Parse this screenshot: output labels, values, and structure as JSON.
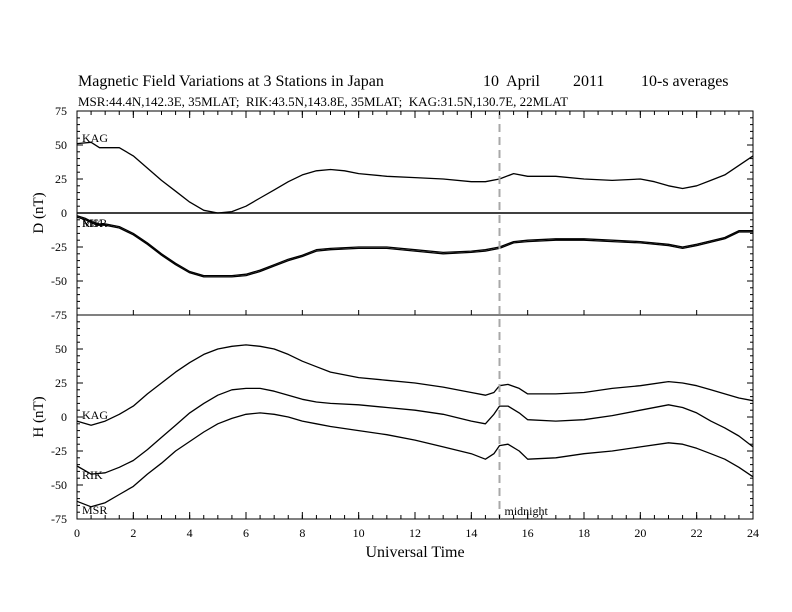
{
  "header": {
    "title": "Magnetic Field Variations at 3 Stations in Japan",
    "date": "10  April",
    "year": "2011",
    "averaging": "10-s averages",
    "stations_line": "MSR:44.4N,142.3E, 35MLAT;  RIK:43.5N,143.8E, 35MLAT;  KAG:31.5N,130.7E, 22MLAT"
  },
  "chart_data": [
    {
      "type": "line",
      "panel": "D",
      "ylabel": "D (nT)",
      "ylim": [
        -75,
        75
      ],
      "yticks": [
        -75,
        -50,
        -25,
        0,
        25,
        50,
        75
      ],
      "xlim": [
        0,
        24
      ],
      "zero_line": true,
      "series": [
        {
          "name": "KAG",
          "x": [
            0,
            0.5,
            0.8,
            1.2,
            1.5,
            2,
            2.5,
            3,
            3.5,
            4,
            4.5,
            5,
            5.5,
            6,
            6.5,
            7,
            7.5,
            8,
            8.5,
            9,
            9.5,
            10,
            11,
            12,
            13,
            14,
            14.5,
            15,
            15.5,
            16,
            17,
            18,
            19,
            20,
            20.5,
            21,
            21.5,
            22,
            22.5,
            23,
            23.5,
            24
          ],
          "y": [
            51,
            52,
            48,
            48,
            48,
            42,
            33,
            24,
            16,
            8,
            2,
            0,
            1,
            5,
            11,
            17,
            23,
            28,
            31,
            32,
            31,
            29,
            27,
            26,
            25,
            23,
            23,
            25,
            29,
            27,
            27,
            25,
            24,
            25,
            23,
            20,
            18,
            20,
            24,
            28,
            35,
            42
          ]
        },
        {
          "name": "RIK",
          "x": [
            0,
            0.3,
            0.7,
            1,
            1.5,
            2,
            2.5,
            3,
            3.5,
            4,
            4.5,
            5,
            5.5,
            6,
            6.5,
            7,
            7.5,
            8,
            8.5,
            9,
            10,
            11,
            12,
            13,
            14,
            14.5,
            15,
            15.5,
            16,
            17,
            18,
            19,
            20,
            21,
            21.5,
            22,
            23,
            23.5,
            24
          ],
          "y": [
            -2,
            -4,
            -8,
            -8,
            -10,
            -15,
            -22,
            -30,
            -37,
            -43,
            -46,
            -46,
            -46,
            -45,
            -42,
            -38,
            -34,
            -31,
            -27,
            -26,
            -25,
            -25,
            -27,
            -29,
            -28,
            -27,
            -25,
            -21,
            -20,
            -19,
            -19,
            -20,
            -21,
            -23,
            -25,
            -23,
            -18,
            -13,
            -13
          ]
        },
        {
          "name": "MSR",
          "x": [
            0,
            0.3,
            0.7,
            1,
            1.5,
            2,
            2.5,
            3,
            3.5,
            4,
            4.5,
            5,
            5.5,
            6,
            6.5,
            7,
            7.5,
            8,
            8.5,
            9,
            10,
            11,
            12,
            13,
            14,
            14.5,
            15,
            15.5,
            16,
            17,
            18,
            19,
            20,
            21,
            21.5,
            22,
            23,
            23.5,
            24
          ],
          "y": [
            -3,
            -5,
            -9,
            -9,
            -11,
            -16,
            -23,
            -31,
            -38,
            -44,
            -47,
            -47,
            -47,
            -46,
            -43,
            -39,
            -35,
            -32,
            -28,
            -27,
            -26,
            -26,
            -28,
            -30,
            -29,
            -28,
            -26,
            -22,
            -21,
            -20,
            -20,
            -21,
            -22,
            -24,
            -26,
            -24,
            -19,
            -14,
            -14
          ]
        }
      ],
      "labels": [
        "KAG",
        "RIK",
        "MSR"
      ]
    },
    {
      "type": "line",
      "panel": "H",
      "ylabel": "H (nT)",
      "ylim": [
        -75,
        75
      ],
      "yticks": [
        -75,
        -50,
        -25,
        0,
        25,
        50
      ],
      "xlim": [
        0,
        24
      ],
      "xticks": [
        0,
        2,
        4,
        6,
        8,
        10,
        12,
        14,
        16,
        18,
        20,
        22,
        24
      ],
      "xlabel": "Universal Time",
      "vertical_marker": {
        "x": 15,
        "label": "midnight",
        "style": "dashed",
        "color": "#a8a8a8"
      },
      "series": [
        {
          "name": "KAG",
          "x": [
            0,
            0.5,
            1,
            1.5,
            2,
            2.5,
            3,
            3.5,
            4,
            4.5,
            5,
            5.5,
            6,
            6.5,
            7,
            7.5,
            8,
            8.5,
            9,
            10,
            11,
            12,
            13,
            14,
            14.5,
            14.8,
            15,
            15.3,
            15.7,
            16,
            17,
            18,
            19,
            20,
            21,
            21.5,
            22,
            22.5,
            23,
            23.5,
            24
          ],
          "y": [
            -3,
            -6,
            -3,
            2,
            8,
            17,
            25,
            33,
            40,
            46,
            50,
            52,
            53,
            52,
            50,
            46,
            41,
            37,
            33,
            29,
            27,
            25,
            22,
            18,
            16,
            18,
            23,
            24,
            21,
            17,
            17,
            18,
            21,
            23,
            26,
            25,
            23,
            20,
            17,
            14,
            12
          ]
        },
        {
          "name": "RIK",
          "x": [
            0,
            0.5,
            1,
            1.5,
            2,
            2.5,
            3,
            3.5,
            4,
            4.5,
            5,
            5.5,
            6,
            6.5,
            7,
            7.5,
            8,
            8.5,
            9,
            10,
            11,
            12,
            13,
            14,
            14.5,
            14.8,
            15,
            15.3,
            15.7,
            16,
            17,
            18,
            19,
            20,
            21,
            21.5,
            22,
            22.5,
            23,
            23.5,
            24
          ],
          "y": [
            -36,
            -42,
            -41,
            -37,
            -32,
            -24,
            -15,
            -6,
            3,
            10,
            16,
            20,
            21,
            21,
            19,
            16,
            13,
            11,
            10,
            9,
            7,
            5,
            2,
            -3,
            -5,
            2,
            8,
            8,
            3,
            -2,
            -3,
            -2,
            1,
            5,
            9,
            7,
            3,
            -3,
            -8,
            -14,
            -22
          ]
        },
        {
          "name": "MSR",
          "x": [
            0,
            0.5,
            1,
            1.5,
            2,
            2.5,
            3,
            3.5,
            4,
            4.5,
            5,
            5.5,
            6,
            6.5,
            7,
            7.5,
            8,
            8.5,
            9,
            10,
            11,
            12,
            13,
            14,
            14.5,
            14.8,
            15,
            15.3,
            15.7,
            16,
            17,
            18,
            19,
            20,
            21,
            21.5,
            22,
            22.5,
            23,
            23.5,
            24
          ],
          "y": [
            -62,
            -66,
            -63,
            -57,
            -51,
            -42,
            -34,
            -25,
            -18,
            -11,
            -5,
            -1,
            2,
            3,
            2,
            0,
            -3,
            -5,
            -7,
            -10,
            -13,
            -17,
            -22,
            -27,
            -31,
            -27,
            -21,
            -20,
            -25,
            -31,
            -30,
            -27,
            -25,
            -22,
            -19,
            -20,
            -23,
            -27,
            -31,
            -37,
            -44
          ]
        }
      ],
      "labels": [
        "KAG",
        "RIK",
        "MSR"
      ]
    }
  ]
}
